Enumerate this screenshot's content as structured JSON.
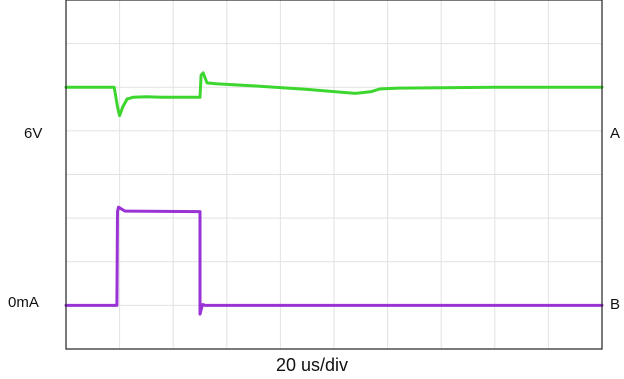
{
  "chart_data": {
    "type": "line",
    "timebase": "20 us/div",
    "grid": true,
    "divisions": {
      "x": 10,
      "y": 8
    },
    "x_unit": "div",
    "y_unit": "div",
    "xlim": [
      0,
      10
    ],
    "ylim": [
      0,
      8
    ],
    "channels": [
      {
        "name": "A",
        "level_label": "6V",
        "level_div": 6.0,
        "color": "#3dd62f",
        "x": [
          0,
          0.9,
          0.96,
          1.0,
          1.06,
          1.14,
          1.25,
          1.5,
          1.8,
          2.5,
          2.52,
          2.56,
          2.63,
          2.8,
          3.5,
          4.5,
          5.0,
          5.4,
          5.7,
          5.85,
          6.2,
          7.0,
          8.0,
          9.0,
          10.0
        ],
        "y": [
          6.0,
          6.0,
          5.55,
          5.35,
          5.55,
          5.73,
          5.77,
          5.78,
          5.77,
          5.77,
          6.28,
          6.33,
          6.1,
          6.08,
          6.03,
          5.95,
          5.9,
          5.86,
          5.9,
          5.96,
          5.98,
          5.99,
          6.0,
          6.0,
          6.0
        ]
      },
      {
        "name": "B",
        "level_label": "0mA",
        "level_div": 1.0,
        "color": "#9a33d6",
        "x": [
          0,
          0.95,
          0.96,
          0.98,
          1.1,
          2.5,
          2.5,
          2.52,
          2.55,
          2.6,
          10.0
        ],
        "y": [
          1.0,
          1.0,
          3.15,
          3.25,
          3.16,
          3.15,
          0.8,
          0.9,
          1.02,
          1.0,
          1.0
        ]
      }
    ]
  }
}
